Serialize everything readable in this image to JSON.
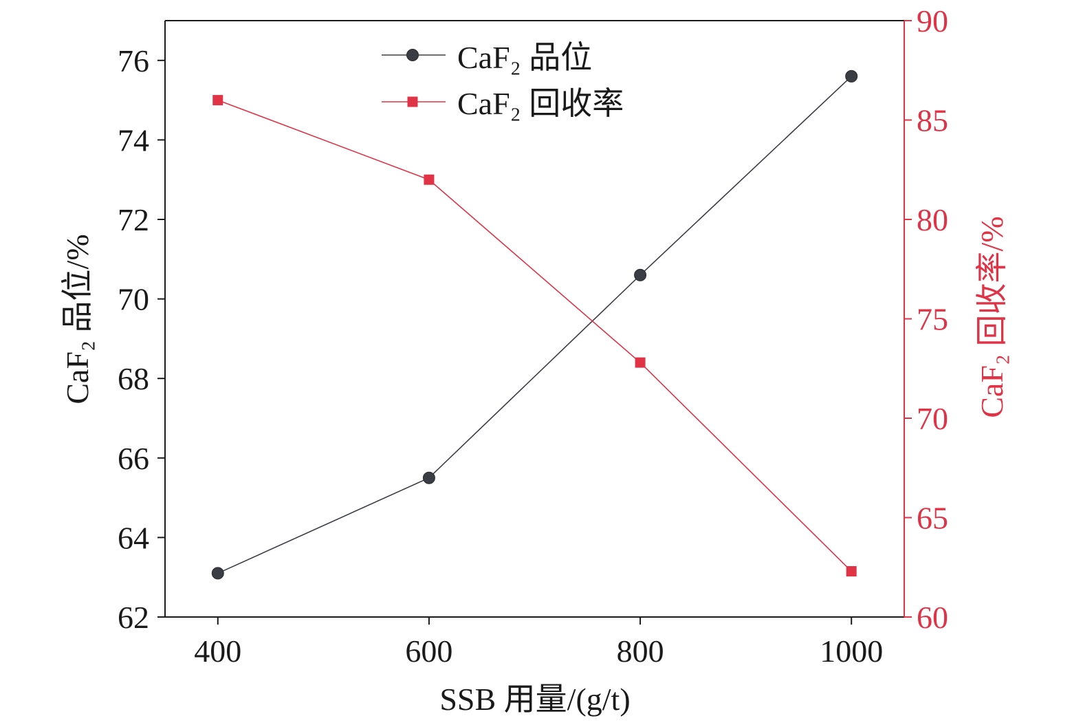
{
  "chart_data": {
    "type": "line",
    "title": "",
    "xlabel": "SSB 用量/(g/t)",
    "ylabel_left": "CaF₂ 品位/%",
    "ylabel_right": "CaF₂ 回收率/%",
    "x": [
      400,
      600,
      800,
      1000
    ],
    "xlim": [
      350,
      1050
    ],
    "xticks": [
      400,
      600,
      800,
      1000
    ],
    "ylim_left": [
      62,
      77
    ],
    "yticks_left": [
      62,
      64,
      66,
      68,
      70,
      72,
      74,
      76
    ],
    "ylim_right": [
      60,
      90
    ],
    "yticks_right": [
      60,
      65,
      70,
      75,
      80,
      85,
      90
    ],
    "grid": false,
    "legend": "top-center",
    "axis_colors": {
      "left": "#1a1a1a",
      "right": "#e03346"
    },
    "series": [
      {
        "name": "CaF₂ 品位",
        "axis": "left",
        "marker": "circle",
        "color": "#3a3d44",
        "values": [
          63.1,
          65.5,
          70.6,
          75.6
        ]
      },
      {
        "name": "CaF₂ 回收率",
        "axis": "right",
        "marker": "square",
        "color": "#e03346",
        "values": [
          86.0,
          82.0,
          72.8,
          62.3
        ]
      }
    ]
  }
}
